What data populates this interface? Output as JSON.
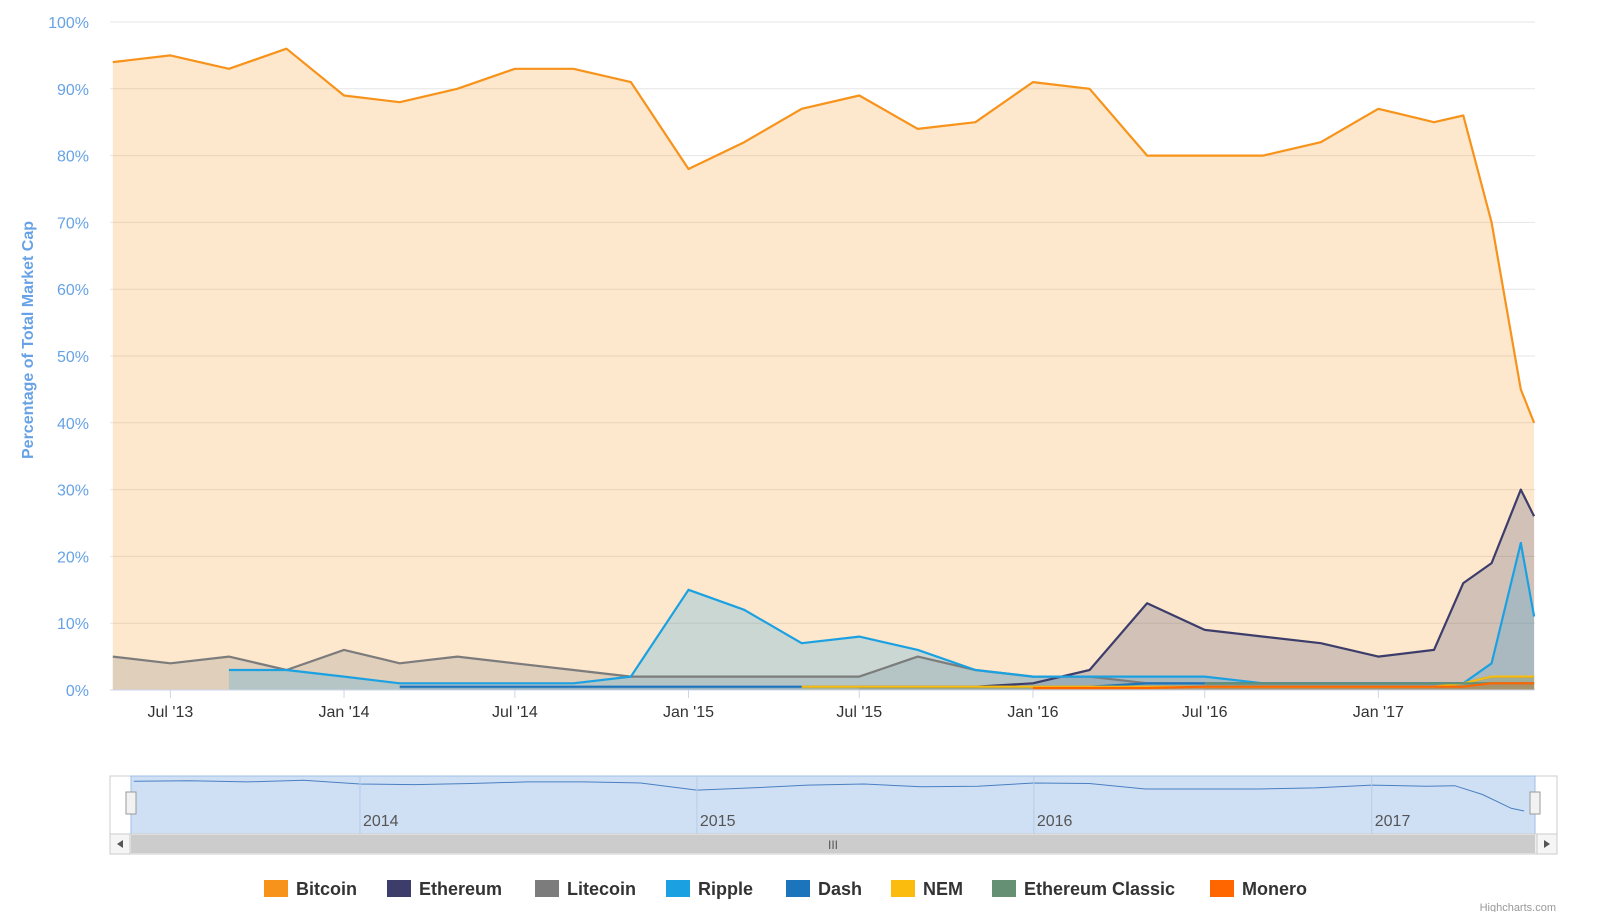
{
  "chart_data": {
    "type": "area",
    "ylabel": "Percentage of Total Market Cap",
    "ylim": [
      0,
      100
    ],
    "yticks": [
      "0%",
      "10%",
      "20%",
      "30%",
      "40%",
      "50%",
      "60%",
      "70%",
      "80%",
      "90%",
      "100%"
    ],
    "xticks": [
      "Jul '13",
      "Jan '14",
      "Jul '14",
      "Jan '15",
      "Jul '15",
      "Jan '16",
      "Jul '16",
      "Jan '17"
    ],
    "navigator_ticks": [
      "2014",
      "2015",
      "2016",
      "2017"
    ],
    "grid": true,
    "legend_position": "bottom",
    "x": [
      "2013-05-01",
      "2013-07-01",
      "2013-09-01",
      "2013-11-01",
      "2014-01-01",
      "2014-03-01",
      "2014-05-01",
      "2014-07-01",
      "2014-09-01",
      "2014-11-01",
      "2015-01-01",
      "2015-03-01",
      "2015-05-01",
      "2015-07-01",
      "2015-09-01",
      "2015-11-01",
      "2016-01-01",
      "2016-03-01",
      "2016-05-01",
      "2016-07-01",
      "2016-09-01",
      "2016-11-01",
      "2017-01-01",
      "2017-03-01",
      "2017-04-01",
      "2017-05-01",
      "2017-06-01",
      "2017-06-15"
    ],
    "series": [
      {
        "name": "Bitcoin",
        "color": "#f7931a",
        "values": [
          94,
          95,
          93,
          96,
          89,
          88,
          90,
          93,
          93,
          91,
          78,
          82,
          87,
          89,
          84,
          85,
          91,
          90,
          80,
          80,
          80,
          82,
          87,
          85,
          86,
          70,
          45,
          40
        ]
      },
      {
        "name": "Ethereum",
        "color": "#3d3d6b",
        "values": [
          null,
          null,
          null,
          null,
          null,
          null,
          null,
          null,
          null,
          null,
          null,
          null,
          null,
          0.5,
          0.5,
          0.5,
          1,
          3,
          13,
          9,
          8,
          7,
          5,
          6,
          16,
          19,
          30,
          26
        ]
      },
      {
        "name": "Litecoin",
        "color": "#7c7c7c",
        "values": [
          5,
          4,
          5,
          3,
          6,
          4,
          5,
          4,
          3,
          2,
          2,
          2,
          2,
          2,
          5,
          3,
          2,
          2,
          1,
          1,
          1,
          1,
          1,
          1,
          1,
          1,
          1,
          1
        ]
      },
      {
        "name": "Ripple",
        "color": "#1ba1e2",
        "values": [
          null,
          null,
          3,
          3,
          2,
          1,
          1,
          1,
          1,
          2,
          15,
          12,
          7,
          8,
          6,
          3,
          2,
          2,
          2,
          2,
          1,
          1,
          1,
          1,
          1,
          4,
          22,
          11
        ]
      },
      {
        "name": "Dash",
        "color": "#1c75bc",
        "values": [
          null,
          null,
          null,
          null,
          null,
          0.5,
          0.5,
          0.5,
          0.5,
          0.5,
          0.5,
          0.5,
          0.5,
          0.5,
          0.5,
          0.5,
          0.5,
          0.5,
          1,
          1,
          1,
          1,
          1,
          1,
          1,
          2,
          2,
          2
        ]
      },
      {
        "name": "NEM",
        "color": "#fbbc0e",
        "values": [
          null,
          null,
          null,
          null,
          null,
          null,
          null,
          null,
          null,
          null,
          null,
          null,
          0.5,
          0.5,
          0.5,
          0.5,
          0.5,
          0.5,
          0.5,
          0.5,
          0.5,
          0.5,
          0.5,
          0.5,
          1,
          2,
          2,
          2
        ]
      },
      {
        "name": "Ethereum Classic",
        "color": "#669073",
        "values": [
          null,
          null,
          null,
          null,
          null,
          null,
          null,
          null,
          null,
          null,
          null,
          null,
          null,
          null,
          null,
          null,
          null,
          null,
          null,
          1,
          1,
          1,
          1,
          1,
          1,
          1,
          1,
          1
        ]
      },
      {
        "name": "Monero",
        "color": "#ff6600",
        "values": [
          null,
          null,
          null,
          null,
          null,
          null,
          null,
          null,
          null,
          null,
          null,
          null,
          null,
          null,
          null,
          null,
          0.3,
          0.3,
          0.3,
          0.5,
          0.5,
          0.5,
          0.5,
          0.5,
          0.5,
          1,
          1,
          1
        ]
      }
    ]
  },
  "credits": "Highcharts.com"
}
